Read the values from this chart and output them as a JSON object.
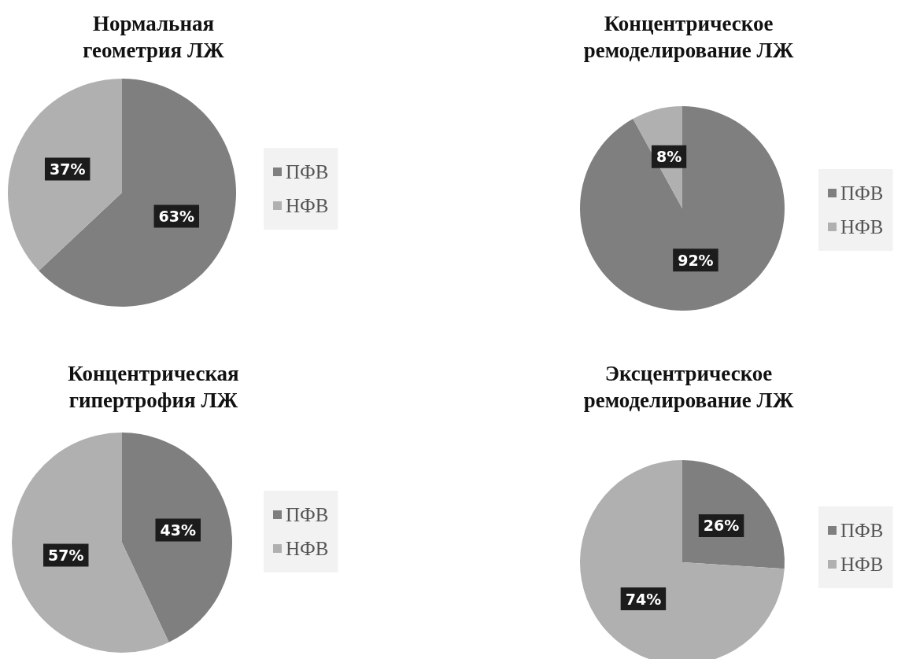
{
  "chart_data": [
    {
      "type": "pie",
      "title": "Нормальная геометрия ЛЖ",
      "categories": [
        "ПФВ",
        "НФВ"
      ],
      "values": [
        63,
        37
      ],
      "colors": [
        "#7f7f7f",
        "#b0b0b0"
      ],
      "value_labels": [
        "63%",
        "37%"
      ],
      "legend": "right"
    },
    {
      "type": "pie",
      "title": "Концентрическое ремоделирование ЛЖ",
      "categories": [
        "ПФВ",
        "НФВ"
      ],
      "values": [
        92,
        8
      ],
      "colors": [
        "#7f7f7f",
        "#b0b0b0"
      ],
      "value_labels": [
        "92%",
        "8%"
      ],
      "legend": "right"
    },
    {
      "type": "pie",
      "title": "Концентрическая гипертрофия ЛЖ",
      "categories": [
        "ПФВ",
        "НФВ"
      ],
      "values": [
        43,
        57
      ],
      "colors": [
        "#7f7f7f",
        "#b0b0b0"
      ],
      "value_labels": [
        "43%",
        "57%"
      ],
      "legend": "right"
    },
    {
      "type": "pie",
      "title": "Эксцентрическое ремоделирование ЛЖ",
      "categories": [
        "ПФВ",
        "НФВ"
      ],
      "values": [
        26,
        74
      ],
      "colors": [
        "#7f7f7f",
        "#b0b0b0"
      ],
      "value_labels": [
        "26%",
        "74%"
      ],
      "legend": "right"
    }
  ]
}
